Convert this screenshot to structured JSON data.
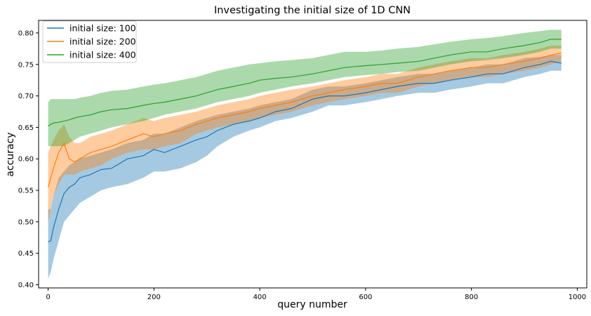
{
  "chart_data": {
    "type": "line",
    "title": "Investigating the initial size of 1D CNN",
    "xlabel": "query number",
    "ylabel": "accuracy",
    "xlim": [
      -18,
      1018
    ],
    "ylim": [
      0.395,
      0.82
    ],
    "x_ticks": [
      0,
      200,
      400,
      600,
      800,
      1000
    ],
    "y_ticks": [
      0.4,
      0.45,
      0.5,
      0.55,
      0.6,
      0.65,
      0.7,
      0.75,
      0.8
    ],
    "grid": false,
    "legend_position": "top-left",
    "series": [
      {
        "name": "initial size: 100",
        "color": "#1f77b4",
        "x": [
          0,
          5,
          10,
          20,
          30,
          40,
          50,
          60,
          80,
          100,
          120,
          150,
          180,
          200,
          220,
          250,
          280,
          300,
          320,
          350,
          380,
          400,
          430,
          460,
          500,
          530,
          560,
          600,
          630,
          660,
          700,
          730,
          760,
          800,
          830,
          860,
          900,
          930,
          950,
          970
        ],
        "y": [
          0.468,
          0.47,
          0.49,
          0.52,
          0.545,
          0.555,
          0.56,
          0.57,
          0.575,
          0.583,
          0.585,
          0.6,
          0.605,
          0.615,
          0.61,
          0.62,
          0.63,
          0.635,
          0.645,
          0.655,
          0.66,
          0.665,
          0.675,
          0.68,
          0.695,
          0.7,
          0.7,
          0.705,
          0.71,
          0.715,
          0.72,
          0.72,
          0.725,
          0.73,
          0.735,
          0.735,
          0.745,
          0.75,
          0.755,
          0.752
        ],
        "lower": [
          0.41,
          0.42,
          0.44,
          0.47,
          0.5,
          0.51,
          0.52,
          0.53,
          0.54,
          0.55,
          0.555,
          0.56,
          0.57,
          0.58,
          0.58,
          0.585,
          0.595,
          0.605,
          0.62,
          0.635,
          0.645,
          0.65,
          0.66,
          0.665,
          0.675,
          0.685,
          0.685,
          0.69,
          0.695,
          0.7,
          0.705,
          0.705,
          0.71,
          0.715,
          0.72,
          0.72,
          0.73,
          0.735,
          0.74,
          0.74
        ],
        "upper": [
          0.52,
          0.52,
          0.54,
          0.57,
          0.58,
          0.59,
          0.595,
          0.6,
          0.605,
          0.61,
          0.615,
          0.625,
          0.63,
          0.64,
          0.64,
          0.65,
          0.66,
          0.665,
          0.67,
          0.675,
          0.68,
          0.685,
          0.69,
          0.695,
          0.71,
          0.715,
          0.715,
          0.72,
          0.725,
          0.73,
          0.735,
          0.735,
          0.74,
          0.745,
          0.75,
          0.75,
          0.76,
          0.762,
          0.765,
          0.765
        ]
      },
      {
        "name": "initial size: 200",
        "color": "#ff7f0e",
        "x": [
          0,
          5,
          10,
          20,
          30,
          40,
          50,
          60,
          80,
          100,
          120,
          150,
          180,
          200,
          220,
          250,
          280,
          300,
          320,
          350,
          380,
          400,
          430,
          460,
          500,
          530,
          560,
          600,
          630,
          660,
          700,
          730,
          760,
          800,
          830,
          860,
          900,
          930,
          950,
          970
        ],
        "y": [
          0.555,
          0.57,
          0.585,
          0.61,
          0.625,
          0.6,
          0.595,
          0.6,
          0.61,
          0.615,
          0.62,
          0.63,
          0.64,
          0.635,
          0.64,
          0.645,
          0.655,
          0.66,
          0.665,
          0.67,
          0.675,
          0.68,
          0.685,
          0.69,
          0.7,
          0.705,
          0.71,
          0.715,
          0.72,
          0.72,
          0.73,
          0.735,
          0.74,
          0.745,
          0.745,
          0.75,
          0.755,
          0.76,
          0.765,
          0.768
        ],
        "lower": [
          0.5,
          0.52,
          0.54,
          0.56,
          0.575,
          0.575,
          0.575,
          0.58,
          0.585,
          0.59,
          0.6,
          0.61,
          0.615,
          0.615,
          0.62,
          0.625,
          0.64,
          0.645,
          0.65,
          0.655,
          0.66,
          0.665,
          0.67,
          0.675,
          0.685,
          0.69,
          0.695,
          0.7,
          0.705,
          0.705,
          0.715,
          0.72,
          0.725,
          0.73,
          0.73,
          0.735,
          0.74,
          0.745,
          0.75,
          0.755
        ],
        "upper": [
          0.61,
          0.62,
          0.63,
          0.645,
          0.655,
          0.635,
          0.625,
          0.625,
          0.635,
          0.64,
          0.645,
          0.655,
          0.665,
          0.66,
          0.665,
          0.67,
          0.675,
          0.68,
          0.685,
          0.69,
          0.695,
          0.7,
          0.705,
          0.71,
          0.715,
          0.72,
          0.725,
          0.73,
          0.735,
          0.735,
          0.745,
          0.75,
          0.755,
          0.76,
          0.76,
          0.765,
          0.77,
          0.775,
          0.78,
          0.78
        ]
      },
      {
        "name": "initial size: 400",
        "color": "#2ca02c",
        "x": [
          0,
          5,
          10,
          20,
          30,
          40,
          50,
          60,
          80,
          100,
          120,
          150,
          180,
          200,
          220,
          250,
          280,
          300,
          320,
          350,
          380,
          400,
          430,
          460,
          500,
          530,
          560,
          600,
          630,
          660,
          700,
          730,
          760,
          800,
          830,
          860,
          900,
          930,
          950,
          970
        ],
        "y": [
          0.652,
          0.655,
          0.657,
          0.658,
          0.66,
          0.662,
          0.665,
          0.667,
          0.67,
          0.675,
          0.678,
          0.68,
          0.685,
          0.688,
          0.69,
          0.695,
          0.7,
          0.705,
          0.71,
          0.715,
          0.72,
          0.725,
          0.728,
          0.73,
          0.735,
          0.74,
          0.745,
          0.748,
          0.75,
          0.752,
          0.755,
          0.76,
          0.765,
          0.77,
          0.77,
          0.775,
          0.78,
          0.785,
          0.79,
          0.79
        ],
        "lower": [
          0.62,
          0.62,
          0.62,
          0.62,
          0.62,
          0.625,
          0.63,
          0.635,
          0.64,
          0.645,
          0.65,
          0.655,
          0.66,
          0.665,
          0.67,
          0.675,
          0.68,
          0.685,
          0.69,
          0.695,
          0.7,
          0.705,
          0.71,
          0.715,
          0.72,
          0.725,
          0.73,
          0.733,
          0.735,
          0.738,
          0.74,
          0.745,
          0.75,
          0.755,
          0.757,
          0.76,
          0.765,
          0.77,
          0.775,
          0.775
        ],
        "upper": [
          0.69,
          0.695,
          0.695,
          0.695,
          0.695,
          0.695,
          0.695,
          0.697,
          0.7,
          0.705,
          0.708,
          0.71,
          0.715,
          0.718,
          0.72,
          0.725,
          0.73,
          0.735,
          0.74,
          0.745,
          0.75,
          0.752,
          0.755,
          0.757,
          0.76,
          0.765,
          0.77,
          0.77,
          0.772,
          0.775,
          0.778,
          0.782,
          0.786,
          0.79,
          0.792,
          0.795,
          0.8,
          0.803,
          0.805,
          0.805
        ]
      }
    ]
  }
}
